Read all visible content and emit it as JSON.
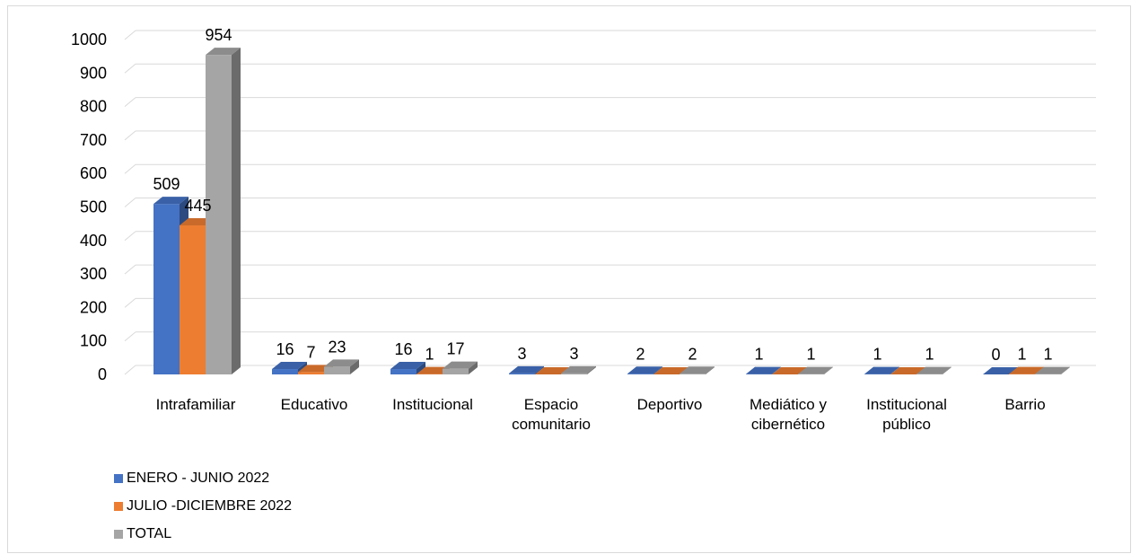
{
  "chart_data": {
    "type": "bar",
    "categories": [
      [
        "Intrafamiliar"
      ],
      [
        "Educativo"
      ],
      [
        "Institucional"
      ],
      [
        "Espacio",
        "comunitario"
      ],
      [
        "Deportivo"
      ],
      [
        "Mediático y",
        "cibernético"
      ],
      [
        "Institucional",
        "público"
      ],
      [
        "Barrio"
      ]
    ],
    "series": [
      {
        "name": "ENERO - JUNIO 2022",
        "values": [
          509,
          16,
          16,
          3,
          2,
          1,
          1,
          0
        ],
        "color": "#4472c4",
        "labels": [
          "509",
          "16",
          "16",
          "3",
          "2",
          "1",
          "1",
          "0"
        ]
      },
      {
        "name": "JULIO -DICIEMBRE 2022",
        "values": [
          445,
          7,
          1,
          0,
          0,
          0,
          0,
          1
        ],
        "color": "#ed7d31",
        "labels": [
          "445",
          "7",
          "1",
          "",
          "",
          "",
          "",
          "1"
        ]
      },
      {
        "name": "TOTAL",
        "values": [
          954,
          23,
          17,
          3,
          2,
          1,
          1,
          1
        ],
        "color": "#a5a5a5",
        "labels": [
          "954",
          "23",
          "17",
          "3",
          "2",
          "1",
          "1",
          "1"
        ]
      }
    ],
    "y_ticks": [
      "0",
      "100",
      "200",
      "300",
      "400",
      "500",
      "600",
      "700",
      "800",
      "900",
      "1000"
    ],
    "ylim": [
      0,
      1000
    ],
    "grid": true,
    "legend_position": "bottom-left",
    "style": "3d-clustered-column"
  }
}
